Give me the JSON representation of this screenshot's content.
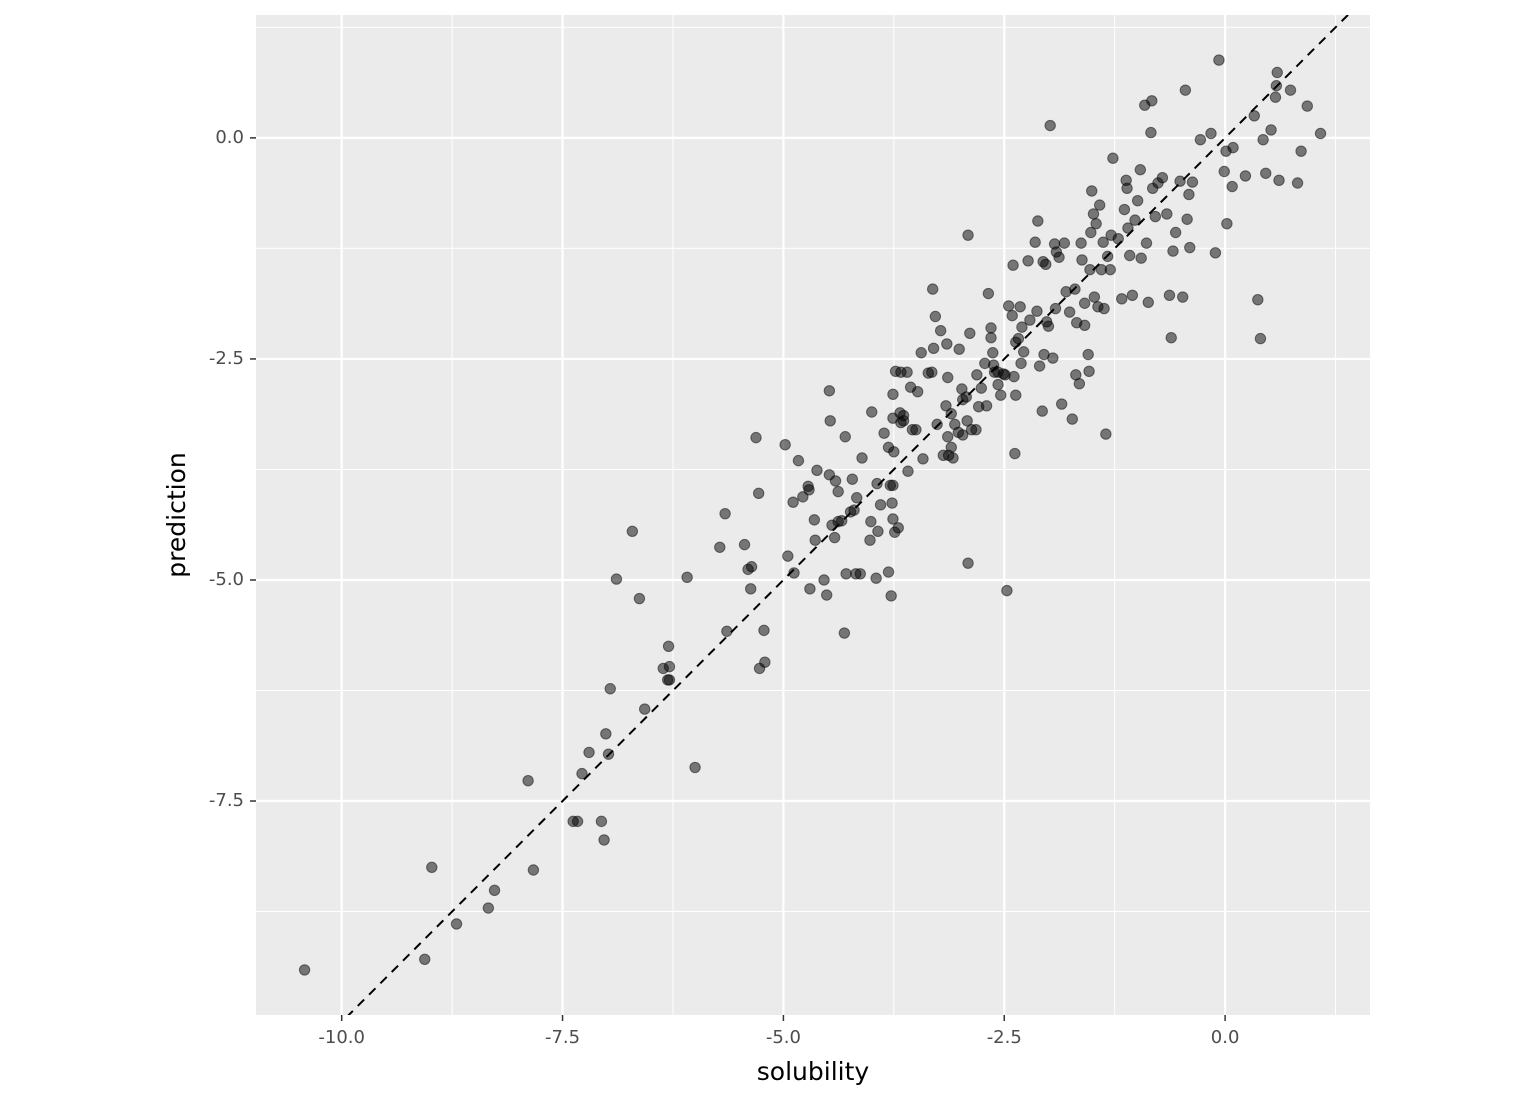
{
  "chart_data": {
    "type": "scatter",
    "x_label": "solubility",
    "y_label": "prediction",
    "xlim": [
      -10.97,
      1.64
    ],
    "ylim": [
      -9.92,
      1.39
    ],
    "xticks": [
      {
        "value": -10,
        "label": "-10.0"
      },
      -7.5,
      {
        "value": -5,
        "label": "-5.0"
      },
      -2.5,
      {
        "value": 0,
        "label": "0.0"
      }
    ],
    "yticks": [
      {
        "value": -7.5,
        "label": "-7.5"
      },
      {
        "value": -5,
        "label": "-5.0"
      },
      -2.5,
      {
        "value": 0,
        "label": "0.0"
      }
    ],
    "grid": true,
    "minor_grid": true,
    "color": "#000000",
    "opacity": 0.5,
    "reference_line": {
      "slope": 1,
      "intercept": 0,
      "style": "dashed"
    },
    "x": [
      -10.42,
      -9.06,
      -8.98,
      -8.7,
      -8.34,
      -8.27,
      -7.83,
      -7.89,
      -7.38,
      -7.33,
      -7.06,
      -7.03,
      -6.98,
      -7.01,
      -7.2,
      -7.28,
      -6.96,
      -6.57,
      -6.0,
      -6.36,
      -6.29,
      -6.29,
      -6.31,
      -6.3,
      -6.89,
      -6.63,
      -6.71,
      -6.09,
      -5.72,
      -5.66,
      -5.64,
      -5.44,
      -5.4,
      -5.36,
      -5.37,
      -5.27,
      -5.21,
      -5.22,
      -5.31,
      -5.28,
      -4.98,
      -4.95,
      -4.88,
      -4.89,
      -4.83,
      -4.78,
      -4.72,
      -4.71,
      -4.65,
      -4.7,
      -4.64,
      -4.62,
      -4.54,
      -4.51,
      -4.48,
      -4.47,
      -4.48,
      -4.45,
      -4.42,
      -4.41,
      -4.38,
      -4.38,
      -4.34,
      -4.3,
      -4.31,
      -4.29,
      -4.22,
      -4.24,
      -4.2,
      -4.18,
      -4.13,
      -4.17,
      -4.11,
      -4.02,
      -4.01,
      -4.0,
      -3.95,
      -3.94,
      -3.93,
      -3.9,
      -3.86,
      -3.81,
      -3.81,
      -3.78,
      -3.77,
      -3.79,
      -3.76,
      -3.76,
      -3.75,
      -3.76,
      -3.76,
      -3.74,
      -3.7,
      -3.73,
      -3.67,
      -3.68,
      -3.67,
      -3.64,
      -3.64,
      -3.6,
      -3.59,
      -3.56,
      -3.54,
      -3.5,
      -3.48,
      -3.44,
      -3.42,
      -3.36,
      -3.32,
      -3.31,
      -3.3,
      -3.28,
      -3.26,
      -3.22,
      -3.19,
      -3.16,
      -3.15,
      -3.14,
      -3.14,
      -3.13,
      -3.1,
      -3.08,
      -3.1,
      -3.06,
      -3.01,
      -3.02,
      -2.98,
      -2.97,
      -2.97,
      -2.93,
      -2.92,
      -2.91,
      -2.91,
      -2.89,
      -2.87,
      -2.82,
      -2.81,
      -2.79,
      -2.76,
      -2.72,
      -2.7,
      -2.68,
      -2.65,
      -2.65,
      -2.63,
      -2.62,
      -2.61,
      -2.57,
      -2.57,
      -2.54,
      -2.51,
      -2.49,
      -2.47,
      -2.45,
      -2.41,
      -2.4,
      -2.39,
      -2.38,
      -2.37,
      -2.37,
      -2.34,
      -2.32,
      -2.31,
      -2.3,
      -2.28,
      -2.23,
      -2.21,
      -2.15,
      -2.13,
      -2.12,
      -2.1,
      -2.07,
      -2.06,
      -2.05,
      -2.03,
      -2.02,
      -2.0,
      -1.98,
      -1.95,
      -1.93,
      -1.92,
      -1.91,
      -1.88,
      -1.85,
      -1.82,
      -1.8,
      -1.76,
      -1.73,
      -1.7,
      -1.69,
      -1.68,
      -1.65,
      -1.63,
      -1.62,
      -1.59,
      -1.59,
      -1.55,
      -1.54,
      -1.53,
      -1.52,
      -1.51,
      -1.49,
      -1.48,
      -1.46,
      -1.44,
      -1.42,
      -1.4,
      -1.38,
      -1.37,
      -1.35,
      -1.33,
      -1.3,
      -1.29,
      -1.27,
      -1.21,
      -1.17,
      -1.14,
      -1.12,
      -1.11,
      -1.1,
      -1.08,
      -1.05,
      -1.02,
      -0.99,
      -0.96,
      -0.95,
      -0.91,
      -0.89,
      -0.87,
      -0.84,
      -0.83,
      -0.82,
      -0.79,
      -0.76,
      -0.71,
      -0.66,
      -0.63,
      -0.61,
      -0.59,
      -0.56,
      -0.51,
      -0.48,
      -0.45,
      -0.43,
      -0.41,
      -0.4,
      -0.37,
      -0.28,
      -0.16,
      -0.11,
      -0.07,
      -0.01,
      0.01,
      0.02,
      0.08,
      0.09,
      0.23,
      0.33,
      0.37,
      0.4,
      0.43,
      0.46,
      0.52,
      0.57,
      0.59,
      0.61,
      0.74,
      0.82,
      0.86,
      0.93,
      1.08,
      0.58
    ],
    "y": [
      -9.41,
      -9.29,
      -8.25,
      -8.89,
      -8.71,
      -8.51,
      -8.28,
      -7.27,
      -7.73,
      -7.73,
      -7.73,
      -7.94,
      -6.97,
      -6.74,
      -6.95,
      -7.19,
      -6.23,
      -6.46,
      -7.12,
      -6.0,
      -5.98,
      -6.13,
      -6.13,
      -5.75,
      -4.99,
      -5.21,
      -4.45,
      -4.97,
      -4.63,
      -4.25,
      -5.58,
      -4.6,
      -4.88,
      -4.85,
      -5.1,
      -6.0,
      -5.93,
      -5.57,
      -3.39,
      -4.02,
      -3.47,
      -4.73,
      -4.92,
      -4.12,
      -3.65,
      -4.06,
      -3.94,
      -3.98,
      -4.32,
      -5.1,
      -4.55,
      -3.76,
      -5.0,
      -5.17,
      -3.81,
      -3.2,
      -2.86,
      -4.38,
      -4.52,
      -3.88,
      -4.0,
      -4.34,
      -4.33,
      -3.38,
      -5.6,
      -4.93,
      -3.86,
      -4.23,
      -4.21,
      -4.93,
      -4.93,
      -4.07,
      -3.62,
      -4.55,
      -4.34,
      -3.1,
      -4.98,
      -3.91,
      -4.45,
      -4.15,
      -3.34,
      -3.5,
      -4.91,
      -5.18,
      -4.13,
      -3.93,
      -3.93,
      -2.9,
      -3.55,
      -3.17,
      -4.31,
      -4.46,
      -4.41,
      -2.64,
      -2.65,
      -3.11,
      -3.22,
      -3.14,
      -3.2,
      -2.65,
      -3.77,
      -2.82,
      -3.3,
      -3.3,
      -2.87,
      -2.43,
      -3.63,
      -2.66,
      -2.65,
      -1.71,
      -2.38,
      -2.02,
      -3.24,
      -2.18,
      -3.59,
      -3.03,
      -2.33,
      -2.71,
      -3.38,
      -3.59,
      -3.5,
      -3.62,
      -3.12,
      -3.24,
      -2.39,
      -3.33,
      -2.84,
      -2.96,
      -3.36,
      -2.93,
      -3.2,
      -1.1,
      -4.81,
      -2.21,
      -3.3,
      -3.3,
      -2.68,
      -3.04,
      -2.83,
      -2.55,
      -3.03,
      -1.76,
      -2.26,
      -2.15,
      -2.43,
      -2.57,
      -2.65,
      -2.79,
      -2.65,
      -2.91,
      -2.67,
      -2.68,
      -5.12,
      -1.9,
      -2.01,
      -1.44,
      -2.7,
      -3.57,
      -2.91,
      -2.31,
      -2.27,
      -1.91,
      -2.55,
      -2.14,
      -2.42,
      -1.39,
      -2.06,
      -1.18,
      -1.96,
      -0.94,
      -2.58,
      -3.09,
      -1.4,
      -2.45,
      -1.43,
      -2.08,
      -2.13,
      0.14,
      -2.49,
      -1.2,
      -1.93,
      -1.29,
      -1.35,
      -3.01,
      -1.19,
      -1.74,
      -1.97,
      -3.18,
      -1.71,
      -2.68,
      -2.09,
      -2.78,
      -1.19,
      -1.38,
      -1.87,
      -2.12,
      -2.45,
      -2.64,
      -1.49,
      -1.07,
      -0.6,
      -0.86,
      -1.8,
      -0.97,
      -1.91,
      -0.76,
      -1.49,
      -1.18,
      -1.93,
      -3.35,
      -1.34,
      -1.49,
      -1.1,
      -0.23,
      -1.14,
      -1.82,
      -0.81,
      -0.48,
      -0.57,
      -1.02,
      -1.33,
      -1.78,
      -0.93,
      -0.71,
      -0.36,
      -1.36,
      0.37,
      -1.19,
      -1.86,
      0.06,
      0.42,
      -0.57,
      -0.89,
      -0.51,
      -0.45,
      -0.86,
      -1.78,
      -2.26,
      -1.28,
      -1.07,
      -0.49,
      -1.8,
      0.54,
      -0.92,
      -0.64,
      -1.24,
      -0.5,
      -0.02,
      0.05,
      -1.3,
      0.88,
      -0.38,
      -0.15,
      -0.97,
      -0.55,
      -0.11,
      -0.43,
      0.25,
      -1.83,
      -2.27,
      -0.02,
      -0.4,
      0.09,
      0.46,
      0.74,
      -0.48,
      0.54,
      -0.51,
      -0.15,
      0.36,
      0.05,
      0.59
    ]
  }
}
